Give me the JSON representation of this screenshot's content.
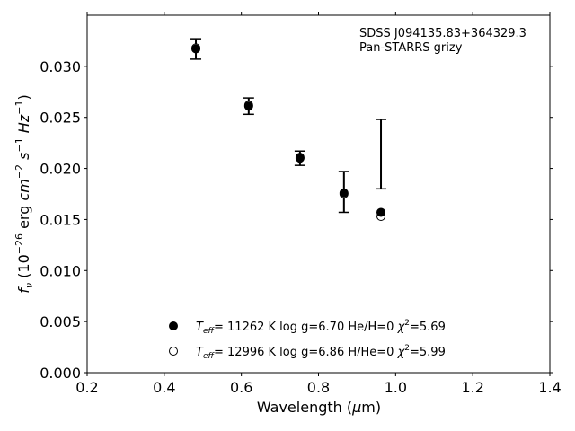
{
  "chart_data": {
    "type": "scatter",
    "annotation_lines": [
      "SDSS J094135.83+364329.3",
      "Pan-STARRS grizy"
    ],
    "xlabel": "Wavelength (μm)",
    "ylabel": "f_ν (10^-26 erg cm^-2 s^-1 Hz^-1)",
    "xlim": [
      0.2,
      1.4
    ],
    "ylim": [
      0.0,
      0.035
    ],
    "xticks": [
      0.2,
      0.4,
      0.6,
      0.8,
      1.0,
      1.2,
      1.4
    ],
    "xtick_labels": [
      "0.2",
      "0.4",
      "0.6",
      "0.8",
      "1.0",
      "1.2",
      "1.4"
    ],
    "yticks": [
      0.0,
      0.005,
      0.01,
      0.015,
      0.02,
      0.025,
      0.03
    ],
    "ytick_labels": [
      "0.000",
      "0.005",
      "0.010",
      "0.015",
      "0.020",
      "0.025",
      "0.030"
    ],
    "grid": false,
    "legend_position": "bottom-center",
    "observed": {
      "x": [
        0.482,
        0.619,
        0.752,
        0.866,
        0.962
      ],
      "y": [
        0.0317,
        0.0261,
        0.021,
        0.0177,
        0.0214
      ],
      "yerr": [
        0.001,
        0.0008,
        0.0007,
        0.002,
        0.0034
      ]
    },
    "series": [
      {
        "name": "T_eff= 11262 K  log g=6.70  He/H=0  χ²=5.69",
        "marker": "filled",
        "color": "#000000",
        "x": [
          0.482,
          0.619,
          0.752,
          0.866,
          0.962
        ],
        "y": [
          0.0317,
          0.0261,
          0.021,
          0.0176,
          0.0157
        ]
      },
      {
        "name": "T_eff= 12996 K  log g=6.86  H/He=0  χ²=5.99",
        "marker": "open",
        "color": "#000000",
        "x": [
          0.482,
          0.619,
          0.752,
          0.866,
          0.962
        ],
        "y": [
          0.0318,
          0.0262,
          0.0211,
          0.0175,
          0.0153
        ]
      }
    ]
  }
}
